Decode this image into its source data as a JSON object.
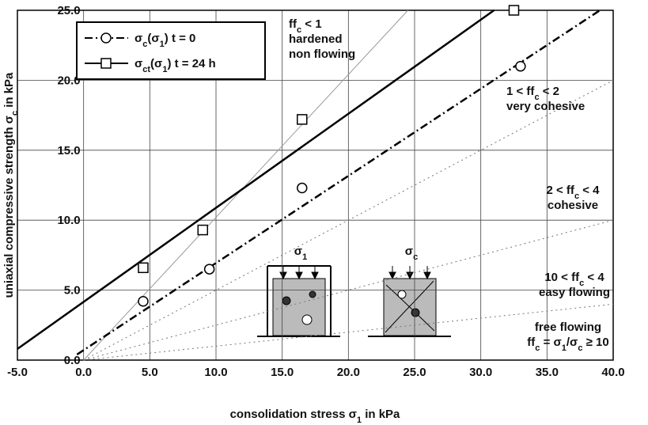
{
  "chart_data": {
    "type": "scatter",
    "xlabel": [
      {
        "text": "consolidation stress  σ"
      },
      {
        "text": "1",
        "sub": true
      },
      {
        "text": " in kPa"
      }
    ],
    "ylabel": [
      {
        "text": "uniaxial compressive strength  σ"
      },
      {
        "text": "c",
        "sub": true
      },
      {
        "text": " in kPa"
      }
    ],
    "xlim": [
      -5,
      40
    ],
    "ylim": [
      0,
      25
    ],
    "xticks": [
      {
        "value": -5,
        "label": "-5.0"
      },
      {
        "value": 0,
        "label": "0.0"
      },
      {
        "value": 5,
        "label": "5.0"
      },
      {
        "value": 10,
        "label": "10.0"
      },
      {
        "value": 15,
        "label": "15.0"
      },
      {
        "value": 20,
        "label": "20.0"
      },
      {
        "value": 25,
        "label": "25.0"
      },
      {
        "value": 30,
        "label": "30.0"
      },
      {
        "value": 35,
        "label": "35.0"
      },
      {
        "value": 40,
        "label": "40.0"
      }
    ],
    "yticks": [
      {
        "value": 0,
        "label": "0.0"
      },
      {
        "value": 5,
        "label": "5.0"
      },
      {
        "value": 10,
        "label": "10.0"
      },
      {
        "value": 15,
        "label": "15.0"
      },
      {
        "value": 20,
        "label": "20.0"
      },
      {
        "value": 25,
        "label": "25.0"
      }
    ],
    "grid": true,
    "series": [
      {
        "name": [
          {
            "text": "σ"
          },
          {
            "text": "c",
            "sub": true
          },
          {
            "text": "(σ"
          },
          {
            "text": "1",
            "sub": true
          },
          {
            "text": ")  t = 0"
          }
        ],
        "marker": "circle",
        "dash": "dashdot",
        "color": "#000000",
        "x": [
          4.5,
          9.5,
          16.5,
          33
        ],
        "values": [
          4.2,
          6.5,
          12.3,
          21
        ],
        "fit_x": [
          -0.5,
          39
        ],
        "fit_y": [
          0.4,
          25
        ]
      },
      {
        "name": [
          {
            "text": "σ"
          },
          {
            "text": "ct",
            "sub": true
          },
          {
            "text": "(σ"
          },
          {
            "text": "1",
            "sub": true
          },
          {
            "text": ")  t = 24 h"
          }
        ],
        "marker": "square",
        "dash": "solid",
        "color": "#000000",
        "x": [
          4.5,
          9,
          16.5,
          32.5
        ],
        "values": [
          6.6,
          9.3,
          17.2,
          25
        ],
        "fit_x": [
          -5,
          31
        ],
        "fit_y": [
          0.8,
          25
        ]
      }
    ],
    "reference_lines": [
      {
        "x": [
          0,
          24.5
        ],
        "y": [
          0,
          25
        ],
        "style": "solid"
      },
      {
        "x": [
          0,
          40
        ],
        "y": [
          0,
          20
        ],
        "style": "dotted"
      },
      {
        "x": [
          0,
          40
        ],
        "y": [
          0,
          10
        ],
        "style": "dotted"
      },
      {
        "x": [
          0,
          40
        ],
        "y": [
          0,
          4
        ],
        "style": "dotted"
      }
    ],
    "annotations": [
      [
        [
          {
            "text": "ff"
          },
          {
            "text": "c",
            "sub": true
          },
          {
            "text": " < 1"
          }
        ],
        [
          {
            "text": "hardened"
          }
        ],
        [
          {
            "text": "non flowing"
          }
        ]
      ],
      [
        [
          {
            "text": "1 < ff"
          },
          {
            "text": "c",
            "sub": true
          },
          {
            "text": " < 2"
          }
        ],
        [
          {
            "text": "very cohesive"
          }
        ]
      ],
      [
        [
          {
            "text": "2 < ff"
          },
          {
            "text": "c",
            "sub": true
          },
          {
            "text": " < 4"
          }
        ],
        [
          {
            "text": "cohesive"
          }
        ]
      ],
      [
        [
          {
            "text": "10 < ff"
          },
          {
            "text": "c",
            "sub": true
          },
          {
            "text": " < 4"
          }
        ],
        [
          {
            "text": "easy flowing"
          }
        ]
      ],
      [
        [
          {
            "text": "free flowing"
          }
        ],
        [
          {
            "text": "ff"
          },
          {
            "text": "c",
            "sub": true
          },
          {
            "text": " = σ"
          },
          {
            "text": "1",
            "sub": true
          },
          {
            "text": "/σ"
          },
          {
            "text": "c",
            "sub": true
          },
          {
            "text": " ≥ 10"
          }
        ]
      ],
      [
        [
          {
            "text": "σ"
          },
          {
            "text": "1",
            "sub": true
          }
        ]
      ],
      [
        [
          {
            "text": "σ"
          },
          {
            "text": "c",
            "sub": true
          }
        ]
      ]
    ]
  }
}
